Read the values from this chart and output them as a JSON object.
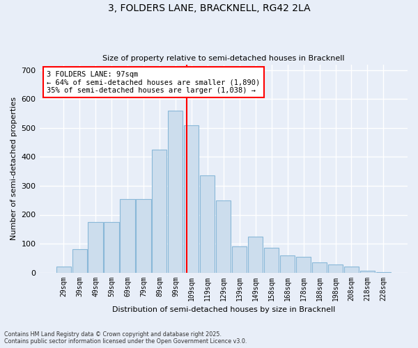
{
  "title_line1": "3, FOLDERS LANE, BRACKNELL, RG42 2LA",
  "title_line2": "Size of property relative to semi-detached houses in Bracknell",
  "xlabel": "Distribution of semi-detached houses by size in Bracknell",
  "ylabel": "Number of semi-detached properties",
  "categories": [
    "29sqm",
    "39sqm",
    "49sqm",
    "59sqm",
    "69sqm",
    "79sqm",
    "89sqm",
    "99sqm",
    "109sqm",
    "119sqm",
    "129sqm",
    "139sqm",
    "149sqm",
    "158sqm",
    "168sqm",
    "178sqm",
    "188sqm",
    "198sqm",
    "208sqm",
    "218sqm",
    "228sqm"
  ],
  "values": [
    20,
    80,
    175,
    175,
    255,
    255,
    425,
    560,
    510,
    335,
    250,
    90,
    125,
    85,
    60,
    55,
    35,
    28,
    20,
    5,
    2
  ],
  "bar_color": "#ccdded",
  "bar_edge_color": "#89b8d8",
  "background_color": "#e8eef8",
  "grid_color": "#ffffff",
  "annotation_box_title": "3 FOLDERS LANE: 97sqm",
  "annotation_line1": "← 64% of semi-detached houses are smaller (1,890)",
  "annotation_line2": "35% of semi-detached houses are larger (1,038) →",
  "red_line_x": 7.72,
  "ylim": [
    0,
    720
  ],
  "yticks": [
    0,
    100,
    200,
    300,
    400,
    500,
    600,
    700
  ],
  "footer_line1": "Contains HM Land Registry data © Crown copyright and database right 2025.",
  "footer_line2": "Contains public sector information licensed under the Open Government Licence v3.0."
}
